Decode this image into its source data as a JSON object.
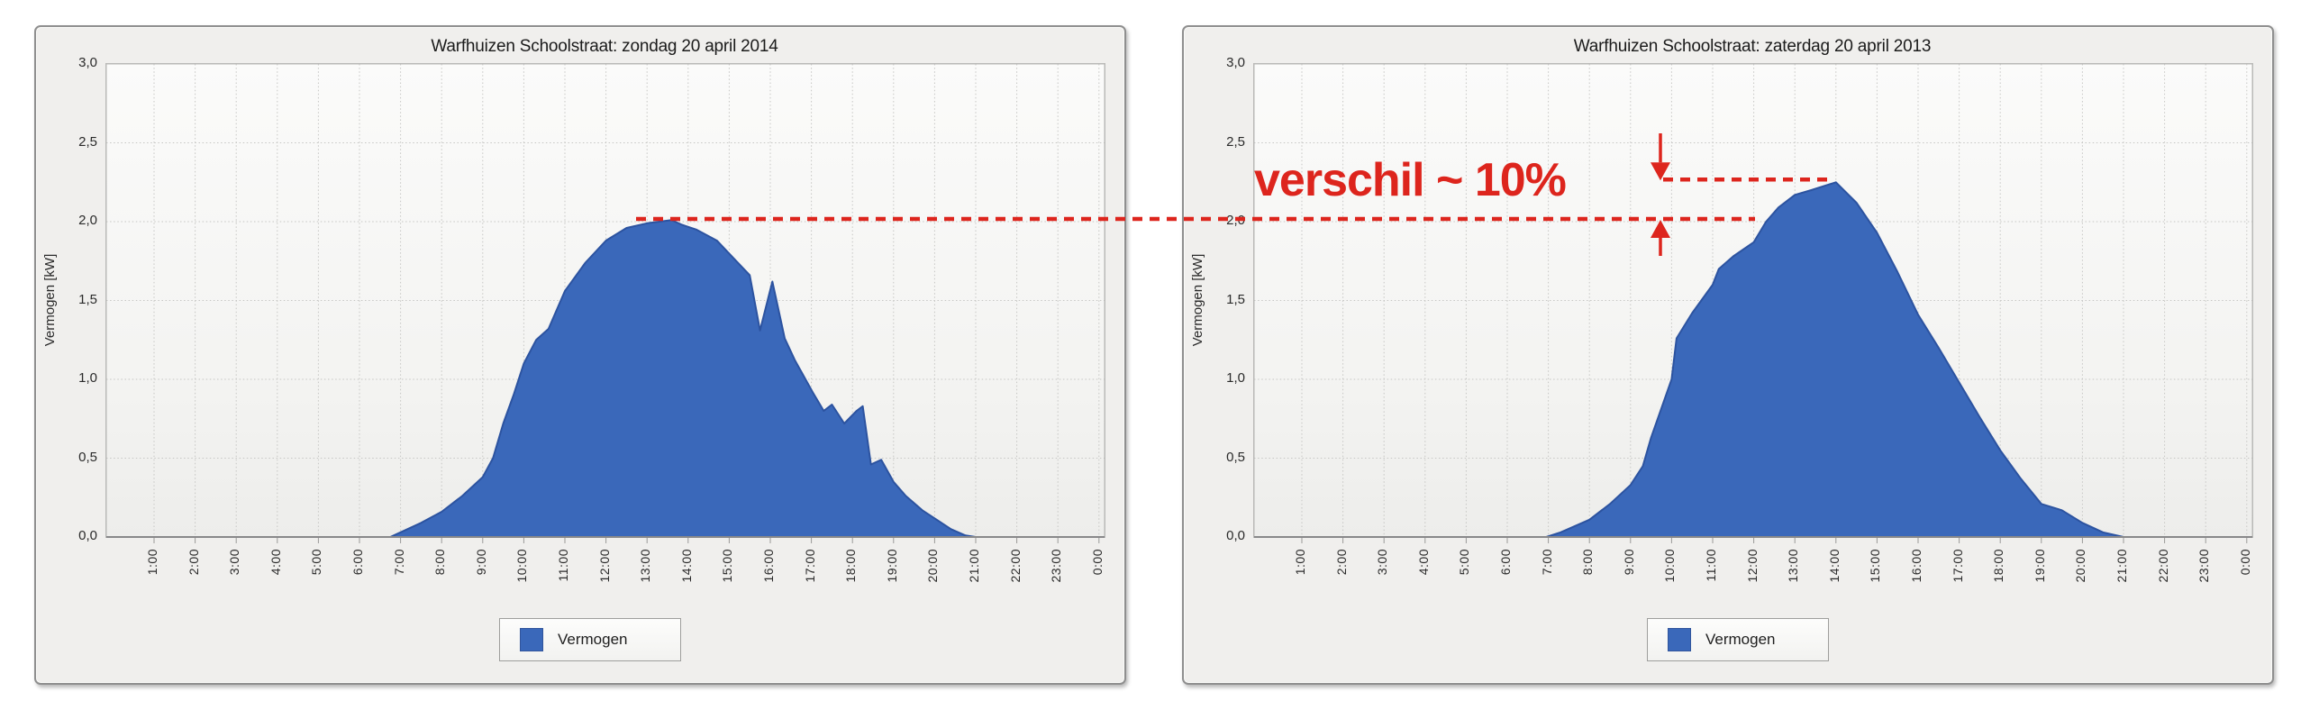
{
  "colors": {
    "series_fill": "#3a68ba",
    "series_edge": "#2c53a0",
    "annotation_red": "#dd251d",
    "grid": "#c6c6c4",
    "axis_line": "#88888a"
  },
  "annotation": {
    "text": "verschil ~ 10%",
    "color": "#dd251d",
    "reference_level_kw": 2.0,
    "peak_level_kw": 2.25
  },
  "chart_data": [
    {
      "type": "area",
      "title": "Warfhuizen Schoolstraat: zondag 20 april 2014",
      "xlabel": "",
      "ylabel": "Vermogen [kW]",
      "ylim": [
        0,
        3.0
      ],
      "xlim_hours": [
        0,
        24
      ],
      "grid": true,
      "legend_position": "bottom",
      "legend": [
        "Vermogen"
      ],
      "y_tick_labels": [
        "0,0",
        "0,5",
        "1,0",
        "1,5",
        "2,0",
        "2,5",
        "3,0"
      ],
      "y_tick_values": [
        0,
        0.5,
        1.0,
        1.5,
        2.0,
        2.5,
        3.0
      ],
      "x_tick_labels": [
        "1:00",
        "2:00",
        "3:00",
        "4:00",
        "5:00",
        "6:00",
        "7:00",
        "8:00",
        "9:00",
        "10:00",
        "11:00",
        "12:00",
        "13:00",
        "14:00",
        "15:00",
        "16:00",
        "17:00",
        "18:00",
        "19:00",
        "20:00",
        "21:00",
        "22:00",
        "23:00",
        "0:00"
      ],
      "peak_kw": 2.0,
      "peak_time": "13:30",
      "series": [
        {
          "name": "Vermogen",
          "points_hour_kw": [
            [
              0,
              0
            ],
            [
              6.75,
              0
            ],
            [
              7,
              0.03
            ],
            [
              7.5,
              0.09
            ],
            [
              8,
              0.16
            ],
            [
              8.5,
              0.26
            ],
            [
              9,
              0.38
            ],
            [
              9.25,
              0.5
            ],
            [
              9.5,
              0.72
            ],
            [
              9.75,
              0.9
            ],
            [
              10,
              1.1
            ],
            [
              10.3,
              1.25
            ],
            [
              10.6,
              1.32
            ],
            [
              11,
              1.56
            ],
            [
              11.5,
              1.74
            ],
            [
              12,
              1.88
            ],
            [
              12.5,
              1.96
            ],
            [
              13,
              1.99
            ],
            [
              13.3,
              2.0
            ],
            [
              13.6,
              2.01
            ],
            [
              13.85,
              1.98
            ],
            [
              14.2,
              1.95
            ],
            [
              14.7,
              1.88
            ],
            [
              15.1,
              1.77
            ],
            [
              15.5,
              1.66
            ],
            [
              15.75,
              1.31
            ],
            [
              16.05,
              1.62
            ],
            [
              16.35,
              1.26
            ],
            [
              16.6,
              1.12
            ],
            [
              17.05,
              0.91
            ],
            [
              17.3,
              0.8
            ],
            [
              17.5,
              0.84
            ],
            [
              17.8,
              0.72
            ],
            [
              18.1,
              0.8
            ],
            [
              18.25,
              0.83
            ],
            [
              18.45,
              0.46
            ],
            [
              18.7,
              0.49
            ],
            [
              19,
              0.35
            ],
            [
              19.3,
              0.26
            ],
            [
              19.7,
              0.17
            ],
            [
              20.05,
              0.11
            ],
            [
              20.4,
              0.05
            ],
            [
              20.75,
              0.01
            ],
            [
              21,
              0
            ],
            [
              24,
              0
            ]
          ]
        }
      ]
    },
    {
      "type": "area",
      "title": "Warfhuizen Schoolstraat: zaterdag 20 april 2013",
      "xlabel": "",
      "ylabel": "Vermogen [kW]",
      "ylim": [
        0,
        3.0
      ],
      "xlim_hours": [
        0,
        24
      ],
      "grid": true,
      "legend_position": "bottom",
      "legend": [
        "Vermogen"
      ],
      "y_tick_labels": [
        "0,0",
        "0,5",
        "1,0",
        "1,5",
        "2,0",
        "2,5",
        "3,0"
      ],
      "y_tick_values": [
        0,
        0.5,
        1.0,
        1.5,
        2.0,
        2.5,
        3.0
      ],
      "x_tick_labels": [
        "1:00",
        "2:00",
        "3:00",
        "4:00",
        "5:00",
        "6:00",
        "7:00",
        "8:00",
        "9:00",
        "10:00",
        "11:00",
        "12:00",
        "13:00",
        "14:00",
        "15:00",
        "16:00",
        "17:00",
        "18:00",
        "19:00",
        "20:00",
        "21:00",
        "22:00",
        "23:00",
        "0:00"
      ],
      "peak_kw": 2.25,
      "peak_time": "14:00",
      "series": [
        {
          "name": "Vermogen",
          "points_hour_kw": [
            [
              0,
              0
            ],
            [
              6.95,
              0
            ],
            [
              7.3,
              0.03
            ],
            [
              8,
              0.11
            ],
            [
              8.5,
              0.21
            ],
            [
              9,
              0.33
            ],
            [
              9.3,
              0.45
            ],
            [
              9.5,
              0.63
            ],
            [
              10,
              1.0
            ],
            [
              10.12,
              1.26
            ],
            [
              10.5,
              1.42
            ],
            [
              11,
              1.6
            ],
            [
              11.15,
              1.7
            ],
            [
              11.5,
              1.78
            ],
            [
              12,
              1.87
            ],
            [
              12.3,
              2.0
            ],
            [
              12.6,
              2.09
            ],
            [
              13,
              2.17
            ],
            [
              13.4,
              2.2
            ],
            [
              14,
              2.25
            ],
            [
              14.5,
              2.12
            ],
            [
              15,
              1.93
            ],
            [
              15.5,
              1.68
            ],
            [
              16,
              1.41
            ],
            [
              16.5,
              1.2
            ],
            [
              17,
              0.98
            ],
            [
              17.5,
              0.76
            ],
            [
              18,
              0.55
            ],
            [
              18.5,
              0.37
            ],
            [
              19,
              0.21
            ],
            [
              19.5,
              0.17
            ],
            [
              20,
              0.09
            ],
            [
              20.5,
              0.03
            ],
            [
              21,
              0
            ],
            [
              24,
              0
            ]
          ]
        }
      ]
    }
  ]
}
